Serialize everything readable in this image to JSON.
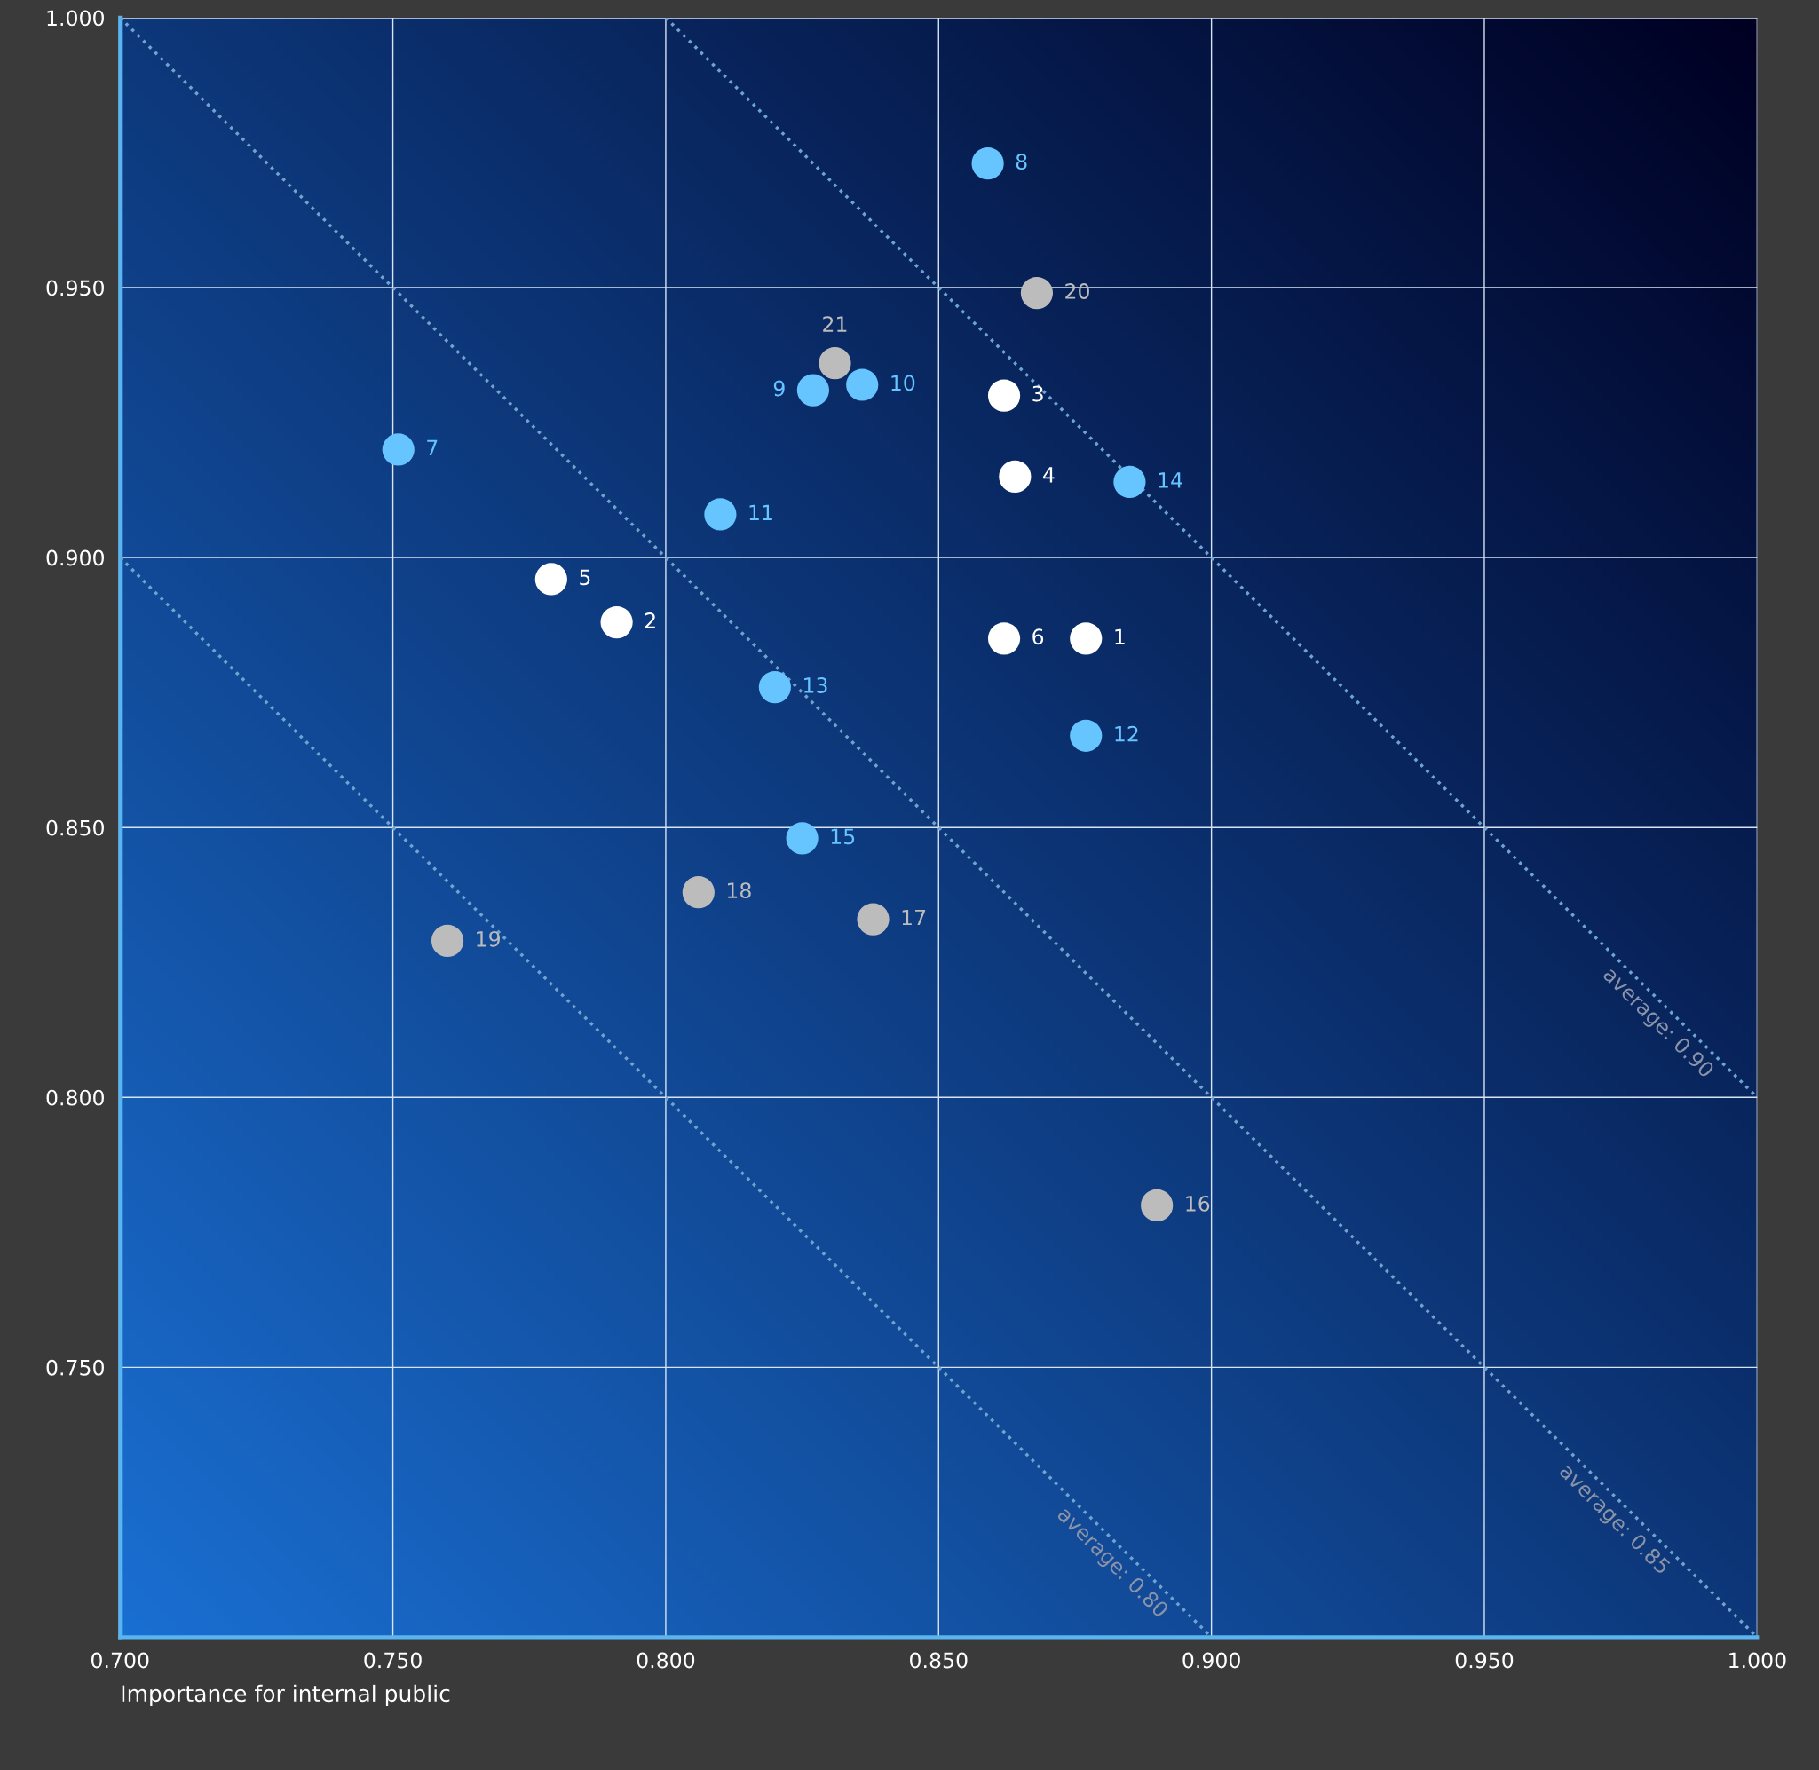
{
  "chart_data": {
    "type": "scatter",
    "xlabel": "Importance for internal public",
    "xlim": [
      0.7,
      1.0
    ],
    "ylim": [
      0.7,
      1.0
    ],
    "xticks": [
      {
        "value": 0.7,
        "label": "0.700"
      },
      {
        "value": 0.75,
        "label": "0.750"
      },
      {
        "value": 0.8,
        "label": "0.800"
      },
      {
        "value": 0.85,
        "label": "0.850"
      },
      {
        "value": 0.9,
        "label": "0.900"
      },
      {
        "value": 0.95,
        "label": "0.950"
      },
      {
        "value": 1.0,
        "label": "1.000"
      }
    ],
    "yticks": [
      {
        "value": 0.75,
        "label": "0.750"
      },
      {
        "value": 0.8,
        "label": "0.800"
      },
      {
        "value": 0.85,
        "label": "0.850"
      },
      {
        "value": 0.9,
        "label": "0.900"
      },
      {
        "value": 0.95,
        "label": "0.950"
      },
      {
        "value": 1.0,
        "label": "1.000"
      }
    ],
    "grid": true,
    "legend": false,
    "marker": "circle",
    "series": [
      {
        "color": "#ffffff",
        "x": [
          0.877,
          0.791,
          0.862,
          0.864,
          0.779,
          0.862
        ],
        "values": [
          0.885,
          0.888,
          0.93,
          0.915,
          0.896,
          0.885
        ]
      },
      {
        "color": "#66c4ff",
        "x": [
          0.751,
          0.859,
          0.827,
          0.836,
          0.81,
          0.877,
          0.82,
          0.885,
          0.825
        ],
        "values": [
          0.92,
          0.973,
          0.931,
          0.932,
          0.908,
          0.867,
          0.876,
          0.914,
          0.848
        ]
      },
      {
        "color": "#bcbcbc",
        "x": [
          0.89,
          0.838,
          0.806,
          0.76,
          0.868,
          0.831
        ],
        "values": [
          0.78,
          0.833,
          0.838,
          0.829,
          0.949,
          0.936
        ]
      },
      {
        "type": "line",
        "name": "average: 0.90",
        "color": "#6fa3d0",
        "line_style": "dotted",
        "marker": "none",
        "x": [
          0.8,
          1.0
        ],
        "values": [
          1.0,
          0.8
        ]
      },
      {
        "type": "line",
        "name": "average: 0.85",
        "color": "#6fa3d0",
        "line_style": "dotted",
        "marker": "none",
        "x": [
          0.7,
          1.0
        ],
        "values": [
          1.0,
          0.7
        ]
      },
      {
        "type": "line",
        "name": "average: 0.80",
        "color": "#6fa3d0",
        "line_style": "dotted",
        "marker": "none",
        "x": [
          0.7,
          0.9
        ],
        "values": [
          0.9,
          0.7
        ]
      }
    ],
    "annotations": [
      {
        "text": "1",
        "x": 0.877,
        "y": 0.885
      },
      {
        "text": "2",
        "x": 0.791,
        "y": 0.888
      },
      {
        "text": "3",
        "x": 0.862,
        "y": 0.93
      },
      {
        "text": "4",
        "x": 0.864,
        "y": 0.915
      },
      {
        "text": "5",
        "x": 0.779,
        "y": 0.896
      },
      {
        "text": "6",
        "x": 0.862,
        "y": 0.885
      },
      {
        "text": "7",
        "x": 0.751,
        "y": 0.92
      },
      {
        "text": "8",
        "x": 0.859,
        "y": 0.973
      },
      {
        "text": "9",
        "x": 0.827,
        "y": 0.931
      },
      {
        "text": "10",
        "x": 0.836,
        "y": 0.932
      },
      {
        "text": "11",
        "x": 0.81,
        "y": 0.908
      },
      {
        "text": "12",
        "x": 0.877,
        "y": 0.867
      },
      {
        "text": "13",
        "x": 0.82,
        "y": 0.876
      },
      {
        "text": "14",
        "x": 0.885,
        "y": 0.914
      },
      {
        "text": "15",
        "x": 0.825,
        "y": 0.848
      },
      {
        "text": "16",
        "x": 0.89,
        "y": 0.78
      },
      {
        "text": "17",
        "x": 0.838,
        "y": 0.833
      },
      {
        "text": "18",
        "x": 0.806,
        "y": 0.838
      },
      {
        "text": "19",
        "x": 0.76,
        "y": 0.829
      },
      {
        "text": "20",
        "x": 0.868,
        "y": 0.949
      },
      {
        "text": "21",
        "x": 0.831,
        "y": 0.936
      }
    ]
  }
}
